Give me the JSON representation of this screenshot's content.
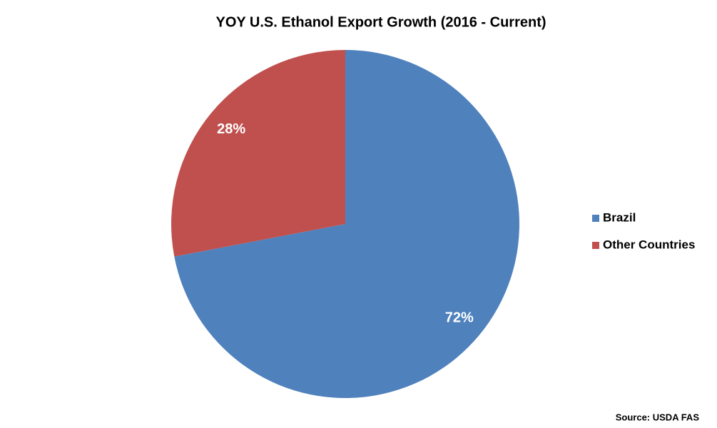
{
  "chart_data": {
    "type": "pie",
    "title": "YOY U.S. Ethanol Export Growth (2016 - Current)",
    "categories": [
      "Brazil",
      "Other Countries"
    ],
    "values": [
      72,
      28
    ],
    "value_labels": [
      "72%",
      "28%"
    ],
    "colors": [
      "#4f81bd",
      "#c0504d"
    ],
    "legend": "right",
    "source": "Source: USDA FAS"
  }
}
